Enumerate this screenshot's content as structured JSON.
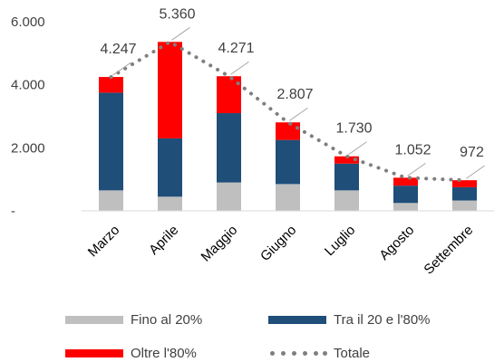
{
  "chart_data": {
    "type": "bar",
    "stacked": true,
    "categories": [
      "Marzo",
      "Aprile",
      "Maggio",
      "Giugno",
      "Luglio",
      "Agosto",
      "Settembre"
    ],
    "series": [
      {
        "name": "Fino al 20%",
        "color": "#bfbfbf",
        "values": [
          650,
          450,
          900,
          850,
          650,
          250,
          330
        ]
      },
      {
        "name": "Tra il 20  e l'80%",
        "color": "#1f4e79",
        "values": [
          3100,
          1850,
          2200,
          1400,
          850,
          550,
          420
        ]
      },
      {
        "name": "Oltre l'80%",
        "color": "#ff0000",
        "values": [
          497,
          3060,
          1171,
          557,
          230,
          252,
          222
        ]
      }
    ],
    "totals": {
      "name": "Totale",
      "color": "#7f7f7f",
      "style": "dotted-line",
      "values": [
        4247,
        5360,
        4271,
        2807,
        1730,
        1052,
        972
      ],
      "labels": [
        "4.247",
        "5.360",
        "4.271",
        "2.807",
        "1.730",
        "1.052",
        "972"
      ]
    },
    "yticks": [
      0,
      2000,
      4000,
      6000
    ],
    "ytick_labels": [
      "-",
      "2.000",
      "4.000",
      "6.000"
    ],
    "ylim": [
      0,
      6000
    ],
    "grid": false,
    "legend_position": "bottom"
  }
}
